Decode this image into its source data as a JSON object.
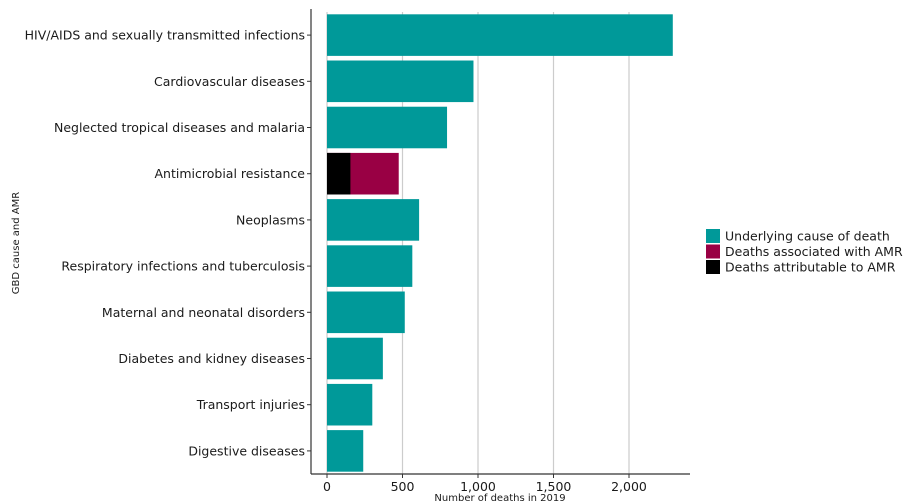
{
  "chart_data": {
    "type": "bar",
    "orientation": "horizontal",
    "stacked": true,
    "ylabel": "GBD cause and AMR",
    "xlabel": "Number of deaths in 2019",
    "xlim": [
      0,
      2400
    ],
    "xticks": [
      0,
      500,
      1000,
      1500,
      2000
    ],
    "xtick_labels": [
      "0",
      "500",
      "1,000",
      "1,500",
      "2,000"
    ],
    "grid": "vertical major gridlines",
    "legend_position": "right",
    "categories": [
      "HIV/AIDS and sexually transmitted infections",
      "Cardiovascular diseases",
      "Neglected tropical diseases and malaria",
      "Antimicrobial resistance",
      "Neoplasms",
      "Respiratory infections and tuberculosis",
      "Maternal and neonatal disorders",
      "Diabetes and kidney diseases",
      "Transport injuries",
      "Digestive diseases"
    ],
    "series": [
      {
        "name": "Underlying cause of death",
        "color": "#009999",
        "values": [
          2290,
          970,
          795,
          0,
          610,
          565,
          515,
          370,
          300,
          240
        ]
      },
      {
        "name": "Deaths associated with AMR",
        "color": "#990044",
        "values": [
          0,
          0,
          0,
          475,
          0,
          0,
          0,
          0,
          0,
          0
        ]
      },
      {
        "name": "Deaths attributable to AMR",
        "color": "#000000",
        "values": [
          0,
          0,
          0,
          155,
          0,
          0,
          0,
          0,
          0,
          0
        ]
      }
    ],
    "legend": [
      {
        "label": "Underlying cause of death",
        "color": "#009999"
      },
      {
        "label": "Deaths associated with AMR",
        "color": "#990044"
      },
      {
        "label": "Deaths attributable to AMR",
        "color": "#000000"
      }
    ]
  }
}
